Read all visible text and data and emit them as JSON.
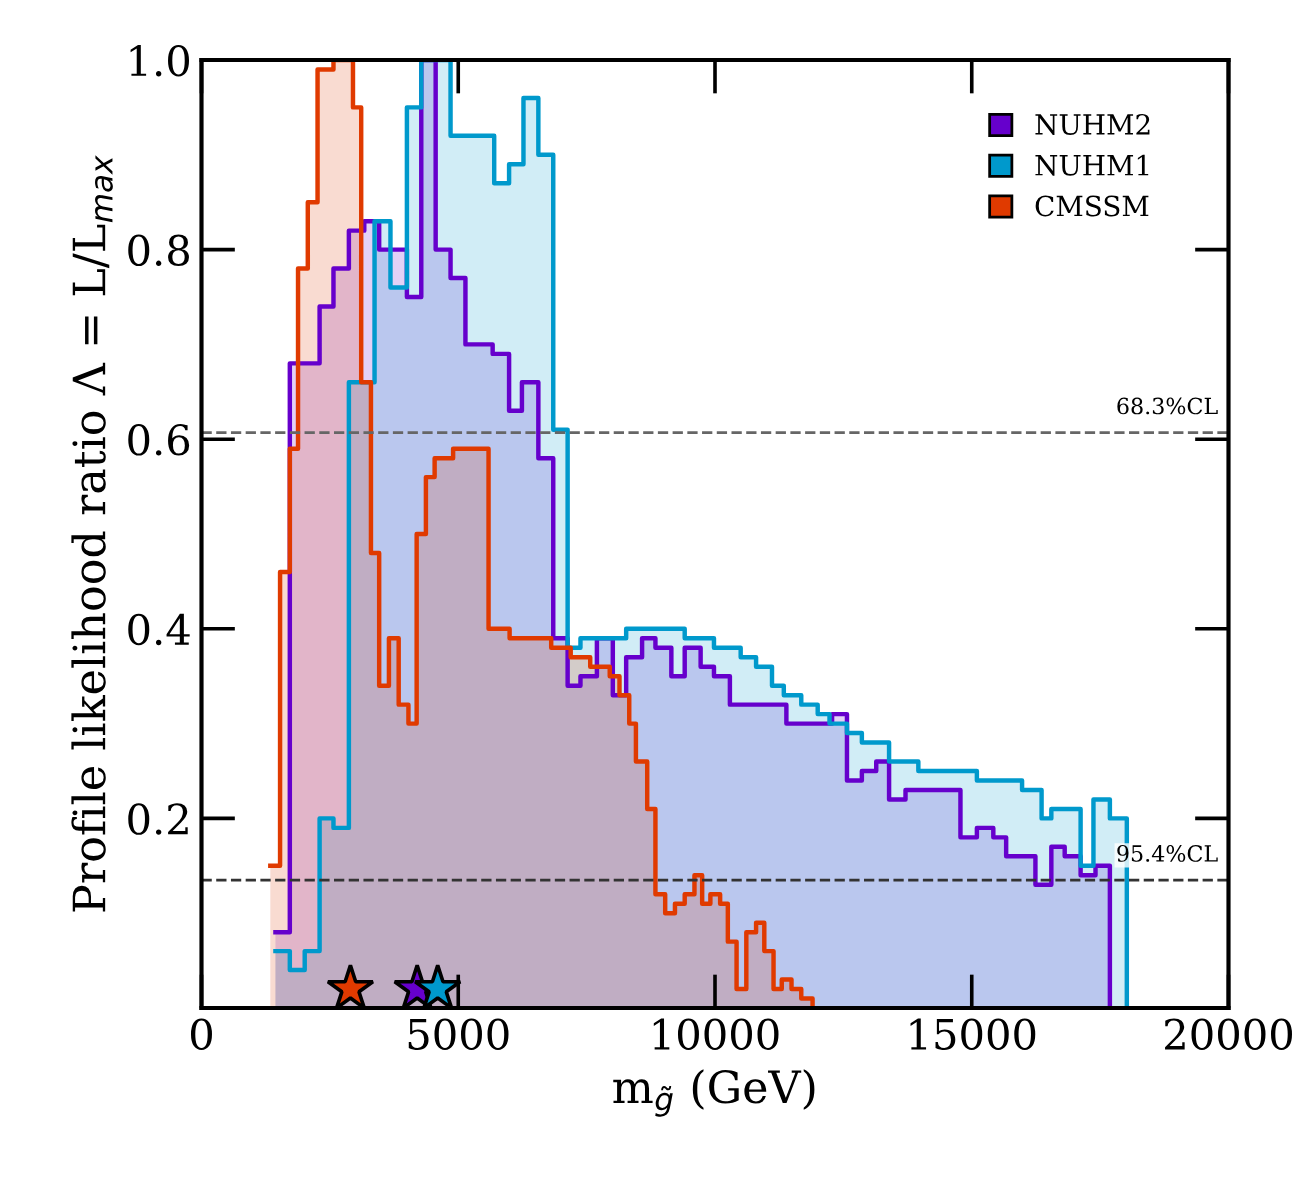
{
  "chart_data": {
    "type": "step",
    "xlabel": "m$_{g̃}$ (GeV)",
    "ylabel": "Profile likelihood ratio Λ = L/L$_{max}$",
    "xlim": [
      0,
      20000
    ],
    "ylim": [
      0,
      1
    ],
    "xticks": [
      0,
      5000,
      10000,
      15000,
      20000
    ],
    "yticks": [
      0.2,
      0.4,
      0.6,
      0.8,
      {
        "value": 1.0,
        "label": "1.0"
      }
    ],
    "legend": "top right",
    "series": [
      {
        "name": "NUHM2",
        "color": "#6600cc",
        "x": [
          1440,
          1720,
          2010,
          2300,
          2570,
          2870,
          3170,
          3460,
          3740,
          4000,
          4280,
          4560,
          4850,
          5140,
          5670,
          5990,
          6240,
          6560,
          6850,
          7130,
          7380,
          7700,
          8010,
          8270,
          8580,
          8840,
          9150,
          9410,
          9720,
          9980,
          10290,
          10580,
          10860,
          11110,
          11390,
          11680,
          12000,
          12280,
          12570,
          12860,
          13140,
          13390,
          13710,
          14780,
          15100,
          15420,
          15670,
          16240,
          16550,
          16810,
          17120,
          17410,
          17690
        ],
        "values": [
          0.08,
          0.68,
          0.68,
          0.74,
          0.78,
          0.82,
          0.83,
          0.8,
          0.8,
          0.75,
          1.0,
          0.8,
          0.77,
          0.7,
          0.69,
          0.63,
          0.66,
          0.58,
          0.39,
          0.34,
          0.35,
          0.39,
          0.33,
          0.37,
          0.39,
          0.38,
          0.35,
          0.38,
          0.36,
          0.35,
          0.32,
          0.32,
          0.32,
          0.32,
          0.3,
          0.3,
          0.3,
          0.31,
          0.24,
          0.25,
          0.26,
          0.22,
          0.23,
          0.18,
          0.19,
          0.18,
          0.16,
          0.13,
          0.17,
          0.16,
          0.14,
          0.15,
          0
        ]
      },
      {
        "name": "NUHM1",
        "color": "#0099cc",
        "x": [
          1440,
          1720,
          2010,
          2300,
          2570,
          2870,
          3370,
          3680,
          4000,
          4280,
          4850,
          5140,
          5420,
          5700,
          5990,
          6270,
          6560,
          6850,
          7130,
          7380,
          7700,
          8270,
          8580,
          9150,
          9410,
          9720,
          9980,
          10230,
          10500,
          10800,
          11110,
          11340,
          11680,
          12000,
          12230,
          12570,
          12860,
          13140,
          13390,
          13960,
          14530,
          15100,
          15980,
          16360,
          16550,
          17120,
          17370,
          17690,
          18020
        ],
        "values": [
          0.06,
          0.04,
          0.06,
          0.2,
          0.19,
          0.66,
          0.83,
          0.76,
          0.95,
          1.0,
          0.92,
          0.92,
          0.92,
          0.87,
          0.89,
          0.96,
          0.9,
          0.61,
          0.38,
          0.39,
          0.39,
          0.4,
          0.4,
          0.4,
          0.39,
          0.39,
          0.38,
          0.38,
          0.37,
          0.36,
          0.34,
          0.33,
          0.32,
          0.31,
          0.3,
          0.29,
          0.28,
          0.28,
          0.26,
          0.25,
          0.25,
          0.24,
          0.23,
          0.2,
          0.21,
          0.15,
          0.22,
          0.2,
          0
        ]
      },
      {
        "name": "CMSSM",
        "color": "#e03a00",
        "x": [
          1340,
          1530,
          1720,
          1880,
          2070,
          2260,
          2570,
          2950,
          3110,
          3300,
          3460,
          3650,
          3840,
          4030,
          4190,
          4370,
          4540,
          4730,
          4900,
          5590,
          6000,
          6500,
          6810,
          7190,
          7570,
          7950,
          8140,
          8330,
          8460,
          8680,
          8840,
          9030,
          9220,
          9410,
          9600,
          9750,
          9910,
          10100,
          10250,
          10420,
          10610,
          10800,
          10960,
          11140,
          11300,
          11490,
          11680,
          11900
        ],
        "values": [
          0.15,
          0.46,
          0.59,
          0.78,
          0.85,
          0.99,
          1.0,
          0.95,
          0.66,
          0.48,
          0.34,
          0.39,
          0.32,
          0.3,
          0.5,
          0.56,
          0.58,
          0.58,
          0.59,
          0.4,
          0.39,
          0.39,
          0.38,
          0.37,
          0.36,
          0.35,
          0.33,
          0.3,
          0.26,
          0.21,
          0.12,
          0.1,
          0.11,
          0.12,
          0.14,
          0.11,
          0.12,
          0.11,
          0.07,
          0.02,
          0.08,
          0.09,
          0.06,
          0.02,
          0.03,
          0.02,
          0.01,
          0
        ]
      },
      {
        "type": "scatter",
        "marker": "star",
        "color": "#6600cc",
        "x": [
          4200
        ],
        "values": [
          0.02
        ]
      },
      {
        "type": "scatter",
        "marker": "star",
        "color": "#0099cc",
        "x": [
          4600
        ],
        "values": [
          0.02
        ]
      },
      {
        "type": "scatter",
        "marker": "star",
        "color": "#e03a00",
        "x": [
          2900
        ],
        "values": [
          0.02
        ]
      }
    ],
    "ref_lines": [
      {
        "axis": "y",
        "value": 0.607,
        "label": "68.3%CL",
        "line_style": "dashed",
        "color": "#666666"
      },
      {
        "axis": "y",
        "value": 0.135,
        "label": "95.4%CL",
        "line_style": "dashed",
        "color": "#333333"
      }
    ]
  }
}
